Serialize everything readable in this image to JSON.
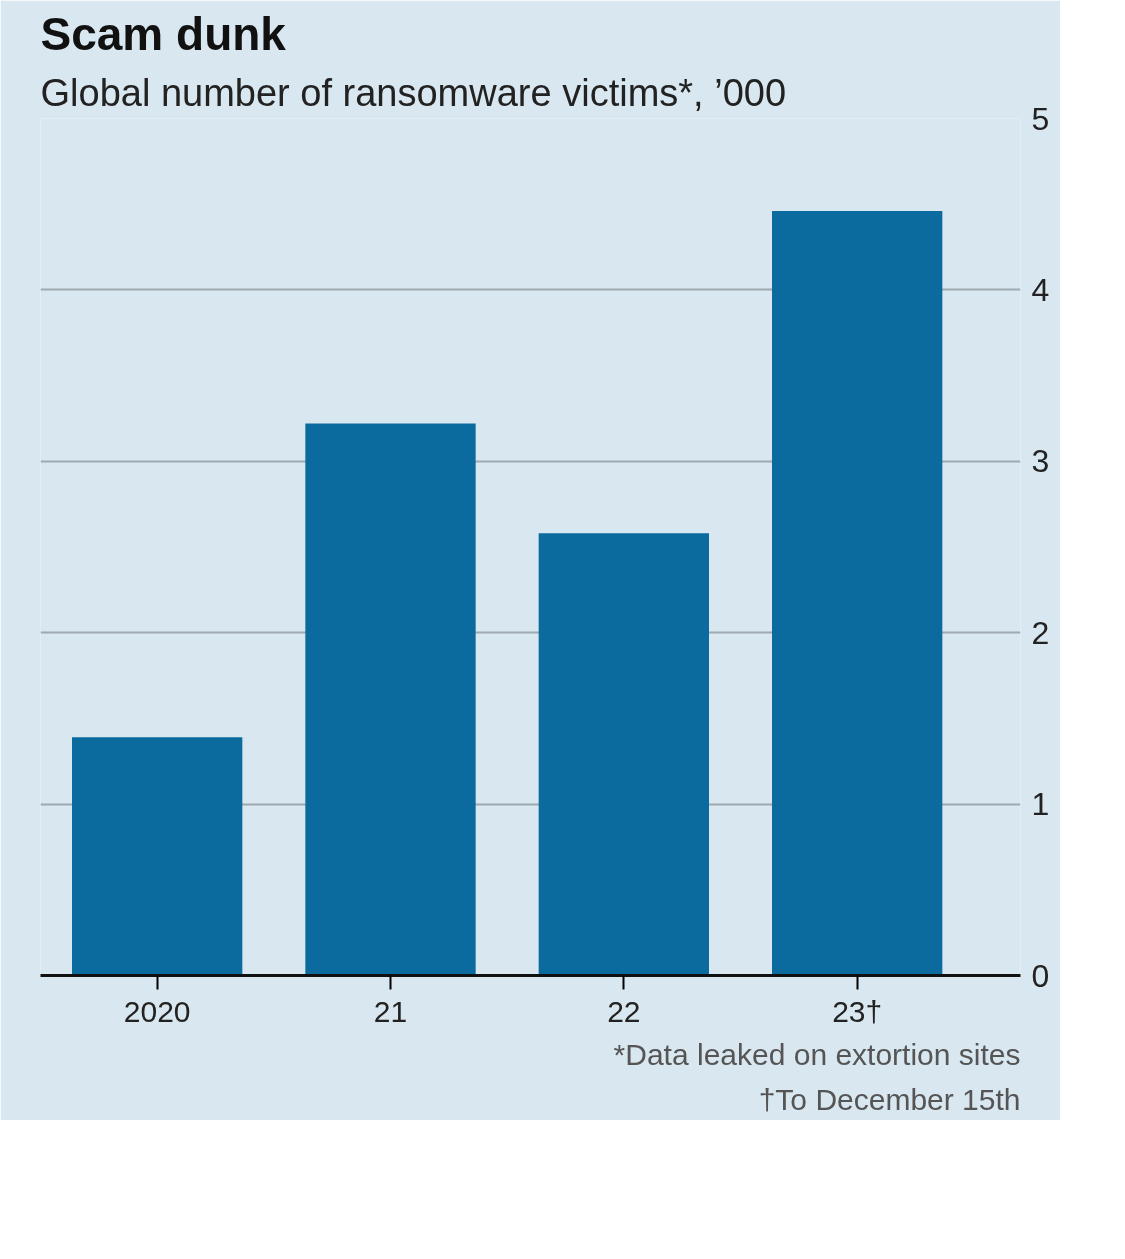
{
  "chart_data": {
    "type": "bar",
    "title": "Scam dunk",
    "subtitle": "Global number of ransomware victims*, ’000",
    "categories": [
      "2020",
      "21",
      "22",
      "23†"
    ],
    "values": [
      1.39,
      3.22,
      2.58,
      4.46
    ],
    "color": "#0b6b9e",
    "ylim": [
      0,
      5
    ],
    "yticks": [
      0,
      1,
      2,
      3,
      4,
      5
    ],
    "grid": "y",
    "annotations": [
      "*Data leaked on extortion sites",
      "†To December 15th"
    ]
  }
}
